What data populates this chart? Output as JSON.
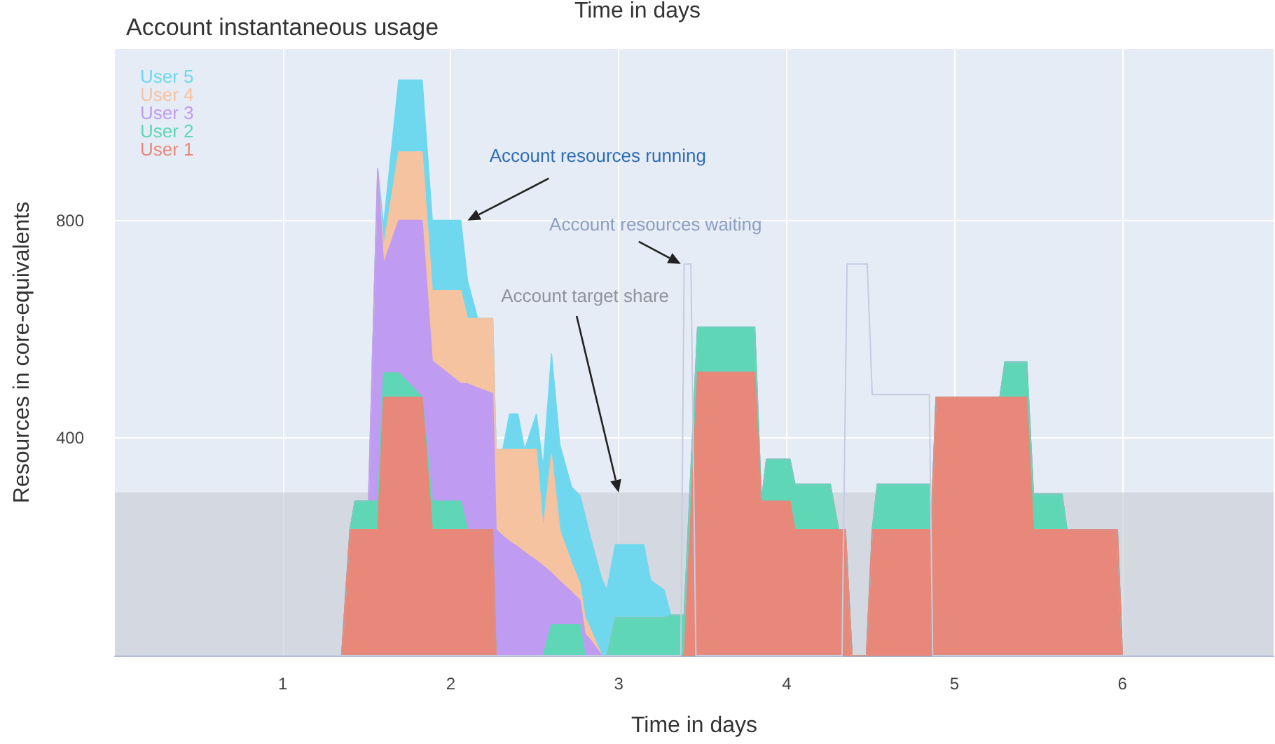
{
  "chart_data": {
    "type": "area",
    "title": "Account instantaneous usage",
    "xlabel": "Time in days",
    "x2label": "Time in days",
    "ylabel": "Resources in core-equivalents",
    "stacked": true,
    "legend": "top left",
    "grid": true,
    "xlim": [
      0,
      6.9
    ],
    "xticks": [
      1,
      2,
      3,
      4,
      5,
      6
    ],
    "ylim": [
      0,
      1115
    ],
    "yticks": [
      400,
      800
    ],
    "x": [
      0,
      1.35,
      1.4,
      1.43,
      1.51,
      1.565,
      1.6,
      1.69,
      1.83,
      1.89,
      2.06,
      2.1,
      2.16,
      2.25,
      2.27,
      2.31,
      2.35,
      2.4,
      2.44,
      2.51,
      2.55,
      2.6,
      2.65,
      2.72,
      2.77,
      2.8,
      2.83,
      2.9,
      2.93,
      2.98,
      3.15,
      3.19,
      3.27,
      3.31,
      3.39,
      3.47,
      3.81,
      3.85,
      3.88,
      4.02,
      4.05,
      4.26,
      4.31,
      4.35,
      4.39,
      4.475,
      4.51,
      4.54,
      4.85,
      4.86,
      4.89,
      5.27,
      5.3,
      5.43,
      5.47,
      5.64,
      5.67,
      5.97,
      6,
      6.9
    ],
    "series": [
      {
        "name": "User 1",
        "color": "#e8887a",
        "values": [
          0,
          0,
          232,
          232,
          232,
          232,
          475,
          475,
          475,
          232,
          232,
          232,
          232,
          232,
          0,
          0,
          0,
          0,
          0,
          0,
          0,
          0,
          0,
          0,
          0,
          0,
          0,
          0,
          0,
          0,
          0,
          0,
          0,
          0,
          0,
          521,
          521,
          284,
          284,
          284,
          232,
          232,
          232,
          232,
          0,
          0,
          232,
          232,
          232,
          232,
          475,
          475,
          475,
          475,
          232,
          232,
          232,
          232,
          0,
          0
        ]
      },
      {
        "name": "User 2",
        "color": "#5fd6b6",
        "values": [
          0,
          0,
          0,
          52,
          52,
          52,
          45,
          45,
          0,
          52,
          52,
          0,
          0,
          0,
          0,
          0,
          0,
          0,
          0,
          0,
          0,
          57,
          57,
          57,
          57,
          0,
          0,
          0,
          0,
          70,
          70,
          70,
          70,
          75,
          75,
          83,
          83,
          0,
          77,
          77,
          83,
          83,
          0,
          0,
          0,
          0,
          0,
          83,
          83,
          0,
          0,
          0,
          65,
          65,
          65,
          65,
          0,
          0,
          0,
          0
        ]
      },
      {
        "name": "User 3",
        "color": "#bf9cf2",
        "values": [
          0,
          0,
          0,
          0,
          0,
          611,
          200,
          280,
          325,
          258,
          216,
          268,
          260,
          250,
          232,
          220,
          210,
          200,
          190,
          175,
          165,
          95,
          80,
          60,
          45,
          40,
          30,
          0,
          0,
          0,
          0,
          0,
          0,
          0,
          0,
          0,
          0,
          0,
          0,
          0,
          0,
          0,
          0,
          0,
          0,
          0,
          0,
          0,
          0,
          0,
          0,
          0,
          0,
          0,
          0,
          0,
          0,
          0,
          0,
          0
        ]
      },
      {
        "name": "User 4",
        "color": "#f6c3a0",
        "values": [
          0,
          0,
          0,
          0,
          0,
          0,
          30,
          126,
          126,
          129,
          171,
          120,
          128,
          138,
          147,
          159,
          169,
          179,
          189,
          204,
          67,
          218,
          93,
          53,
          30,
          30,
          20,
          0,
          0,
          0,
          0,
          0,
          0,
          0,
          0,
          0,
          0,
          0,
          0,
          0,
          0,
          0,
          0,
          0,
          0,
          0,
          0,
          0,
          0,
          0,
          0,
          0,
          0,
          0,
          0,
          0,
          0,
          0,
          0,
          0
        ]
      },
      {
        "name": "User 5",
        "color": "#6fd8ef",
        "values": [
          0,
          0,
          0,
          0,
          0,
          0,
          40,
          132,
          132,
          129,
          129,
          69,
          0,
          0,
          0,
          0,
          65,
          65,
          0,
          65,
          114,
          185,
          157,
          140,
          162,
          188,
          170,
          140,
          121,
          134,
          134,
          69,
          51,
          0,
          0,
          0,
          0,
          0,
          0,
          0,
          0,
          0,
          0,
          0,
          0,
          0,
          0,
          0,
          0,
          0,
          0,
          0,
          0,
          0,
          0,
          0,
          0,
          0,
          0,
          0
        ]
      },
      {
        "type": "line",
        "color": "#c4cde0",
        "x": [
          0,
          3.37,
          3.39,
          3.43,
          3.46,
          4.33,
          4.36,
          4.48,
          4.51,
          4.85,
          4.87,
          6.9
        ],
        "values": [
          0,
          0,
          720,
          720,
          0,
          0,
          720,
          720,
          480,
          480,
          0,
          0
        ]
      }
    ],
    "bands": [
      {
        "axis": "y",
        "from": 0,
        "to": 300,
        "color": "#c8ccd4"
      }
    ],
    "annotations": [
      {
        "text": "Account resources running",
        "x": 2.1,
        "y": 800
      },
      {
        "text": "Account resources waiting",
        "x": 3.37,
        "y": 720
      },
      {
        "text": "Account target share",
        "x": 3.0,
        "y": 300
      }
    ]
  }
}
